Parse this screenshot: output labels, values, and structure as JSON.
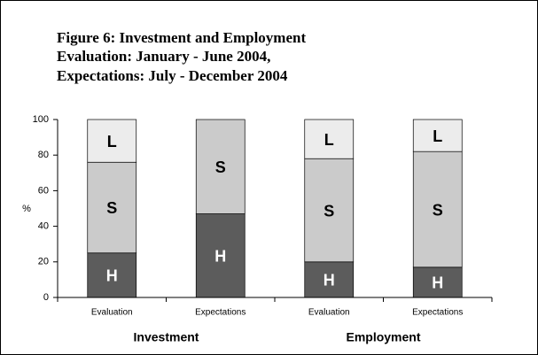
{
  "chart_data": {
    "type": "stacked_bar",
    "title": [
      "Figure 6: Investment and Employment",
      "Evaluation: January - June 2004,",
      "Expectations: July - December 2004"
    ],
    "ylabel": "%",
    "categories": [
      "Evaluation",
      "Expectations",
      "Evaluation",
      "Expectations"
    ],
    "groups": [
      "Investment",
      "Employment"
    ],
    "series": [
      {
        "name": "H",
        "color": "#5c5c5c",
        "values": [
          25,
          47,
          20,
          17
        ]
      },
      {
        "name": "S",
        "color": "#cbcbcb",
        "values": [
          51,
          53,
          58,
          65
        ]
      },
      {
        "name": "L",
        "color": "#ececec",
        "values": [
          24,
          0,
          22,
          18
        ]
      }
    ],
    "ylim": [
      0,
      100
    ],
    "yticks": [
      0,
      20,
      40,
      60,
      80,
      100
    ]
  }
}
